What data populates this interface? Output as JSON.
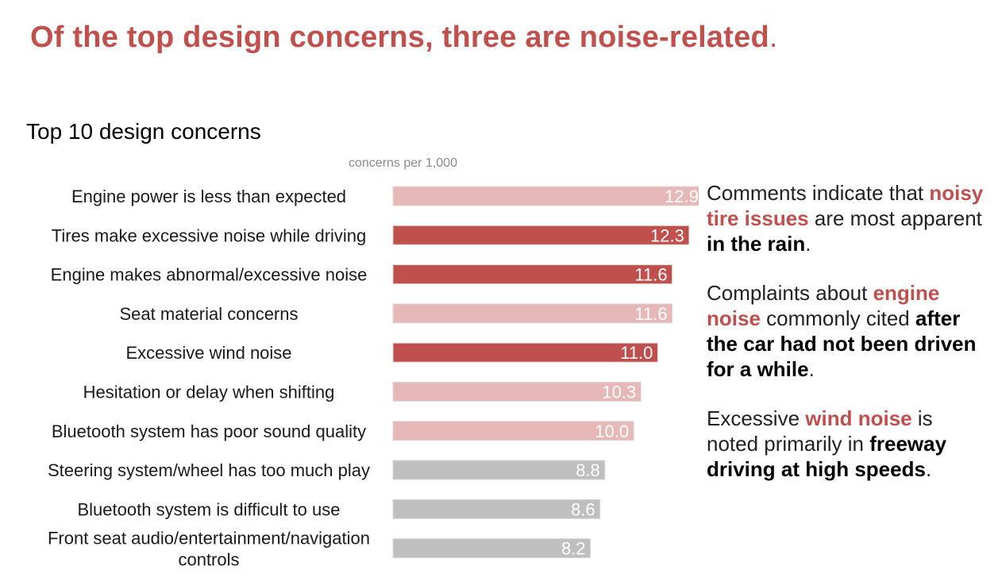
{
  "headline": {
    "text": "Of the top design concerns, three are noise-related",
    "period": "."
  },
  "chart_data": {
    "type": "bar",
    "orientation": "horizontal",
    "title": "Top 10 design concerns",
    "unit_label": "concerns per 1,000",
    "xlim": [
      0,
      12.9
    ],
    "categories": [
      "Engine power is less than expected",
      "Tires make excessive noise while driving",
      "Engine makes abnormal/excessive noise",
      "Seat material concerns",
      "Excessive wind noise",
      "Hesitation or delay when shifting",
      "Bluetooth system has poor sound quality",
      "Steering system/wheel has too much play",
      "Bluetooth system is difficult to use",
      "Front seat audio/entertainment/navigation controls"
    ],
    "values": [
      12.9,
      12.3,
      11.6,
      11.6,
      11.0,
      10.3,
      10.0,
      8.8,
      8.6,
      8.2
    ],
    "value_labels": [
      "12.9",
      "12.3",
      "11.6",
      "11.6",
      "11.0",
      "10.3",
      "10.0",
      "8.8",
      "8.6",
      "8.2"
    ],
    "groups": [
      "other",
      "noise",
      "noise",
      "other",
      "noise",
      "other",
      "other",
      "minor",
      "minor",
      "minor"
    ],
    "colors": {
      "noise": "#c0504d",
      "other": "#e6b9b8",
      "minor": "#bfbfbf",
      "border": "#d9d9d9",
      "label": "#ffffff"
    }
  },
  "annotations": [
    {
      "segments": [
        {
          "text": "Comments indicate that ",
          "style": "plain"
        },
        {
          "text": "noisy tire issues",
          "style": "highlight"
        },
        {
          "text": " are most apparent ",
          "style": "plain"
        },
        {
          "text": "in the rain",
          "style": "emphasis"
        },
        {
          "text": ".",
          "style": "plain"
        }
      ]
    },
    {
      "segments": [
        {
          "text": "Complaints about ",
          "style": "plain"
        },
        {
          "text": "engine noise",
          "style": "highlight"
        },
        {
          "text": " commonly cited ",
          "style": "plain"
        },
        {
          "text": "after the car had not been driven for a while",
          "style": "emphasis"
        },
        {
          "text": ".",
          "style": "plain"
        }
      ]
    },
    {
      "segments": [
        {
          "text": "Excessive ",
          "style": "plain"
        },
        {
          "text": "wind noise",
          "style": "highlight"
        },
        {
          "text": " is noted primarily in ",
          "style": "plain"
        },
        {
          "text": "freeway driving at high speeds",
          "style": "emphasis"
        },
        {
          "text": ".",
          "style": "plain"
        }
      ]
    }
  ]
}
